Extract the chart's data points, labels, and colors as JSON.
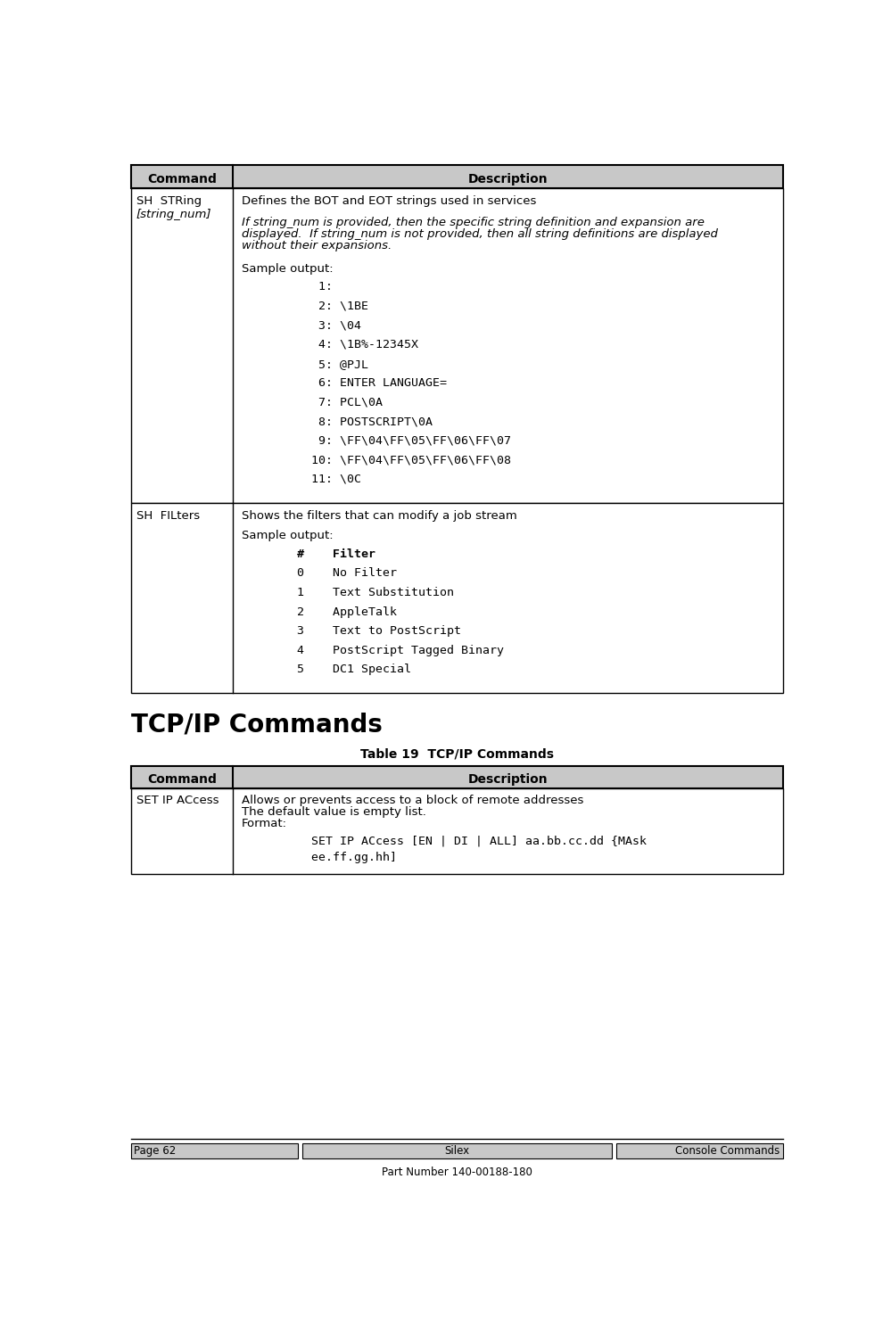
{
  "page_bg": "#ffffff",
  "header_bg": "#c8c8c8",
  "border_color": "#000000",
  "table1_col1_header": "Command",
  "table1_col2_header": "Description",
  "row1_cmd_line1": "SH  STRing",
  "row1_cmd_line2": "[string_num]",
  "row1_desc_line1": "Defines the BOT and EOT strings used in services",
  "row1_italic_line1": "If string_num is provided, then the specific string definition and expansion are",
  "row1_italic_line2": "displayed.  If string_num is not provided, then all string definitions are displayed",
  "row1_italic_line3": "without their expansions.",
  "row1_sample_label": "Sample output:",
  "row1_sample_lines": [
    "   1:",
    "   2: \\1BE",
    "   3: \\04",
    "   4: \\1B%-12345X",
    "   5: @PJL",
    "   6: ENTER LANGUAGE=",
    "   7: PCL\\0A",
    "   8: POSTSCRIPT\\0A",
    "   9: \\FF\\04\\FF\\05\\FF\\06\\FF\\07",
    "  10: \\FF\\04\\FF\\05\\FF\\06\\FF\\08",
    "  11: \\0C"
  ],
  "row2_cmd": "SH  FILters",
  "row2_desc_line1": "Shows the filters that can modify a job stream",
  "row2_sample_label": "Sample output:",
  "row2_filter_header": "#    Filter",
  "row2_filter_rows": [
    "0    No Filter",
    "1    Text Substitution",
    "2    AppleTalk",
    "3    Text to PostScript",
    "4    PostScript Tagged Binary",
    "5    DC1 Special"
  ],
  "section_title": "TCP/IP Commands",
  "table2_title": "Table 19  TCP/IP Commands",
  "table2_col1_header": "Command",
  "table2_col2_header": "Description",
  "row3_cmd": "SET IP ACcess",
  "row3_desc_line1": "Allows or prevents access to a block of remote addresses",
  "row3_desc_line2": "The default value is empty list.",
  "row3_desc_line3": "Format:",
  "row3_sample_line1": "    SET IP ACcess [EN | DI | ALL] aa.bb.cc.dd {MAsk",
  "row3_sample_line2": "    ee.ff.gg.hh]",
  "footer_left": "Page 62",
  "footer_center": "Silex",
  "footer_right": "Console Commands",
  "footer_bottom": "Part Number 140-00188-180"
}
